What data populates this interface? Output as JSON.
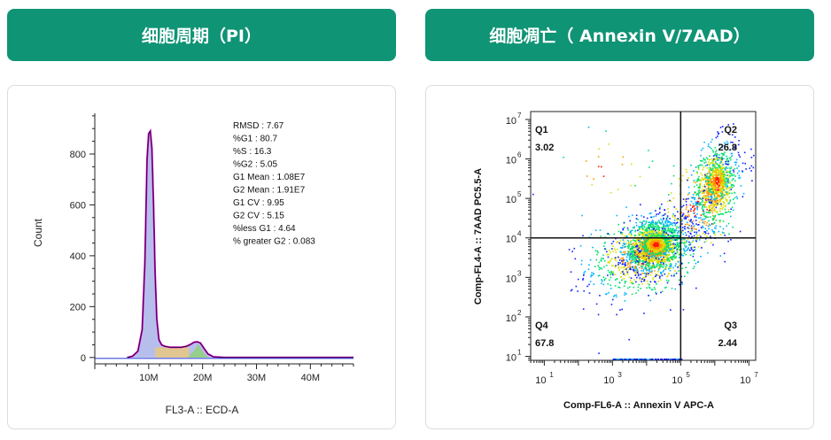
{
  "headers": {
    "left": "细胞周期（PI）",
    "right": "细胞凋亡（ Annexin V/7AAD）"
  },
  "colors": {
    "header_bg": "#0f9475",
    "histogram_fill": "#a9b4e8",
    "fit_line": "#e000e0",
    "s_phase": "#f2c96a",
    "g2_phase": "#8fd07a"
  },
  "chart_data": [
    {
      "type": "histogram",
      "xlabel": "FL3-A :: ECD-A",
      "ylabel": "Count",
      "x_ticks": [
        {
          "v": 10,
          "label": "10M"
        },
        {
          "v": 20,
          "label": "20M"
        },
        {
          "v": 30,
          "label": "30M"
        },
        {
          "v": 40,
          "label": "40M"
        }
      ],
      "y_ticks": [
        0,
        200,
        400,
        600,
        800
      ],
      "xlim": [
        0,
        48
      ],
      "ylim": [
        -25,
        960
      ],
      "x": [
        6,
        7,
        8,
        8.8,
        9.3,
        9.7,
        10,
        10.3,
        10.6,
        10.9,
        11.2,
        11.5,
        11.9,
        12.4,
        13,
        14,
        15,
        16,
        17,
        17.8,
        18.4,
        19,
        19.6,
        20.2,
        21,
        22,
        24,
        30,
        48
      ],
      "values": [
        0,
        5,
        25,
        110,
        380,
        780,
        880,
        890,
        820,
        600,
        330,
        150,
        70,
        50,
        44,
        40,
        40,
        40,
        44,
        52,
        60,
        62,
        57,
        38,
        14,
        3,
        0,
        0,
        0
      ],
      "stats": [
        "RMSD : 7.67",
        "%G1 : 80.7",
        "%S : 16.3",
        "%G2 : 5.05",
        "G1 Mean : 1.08E7",
        "G2 Mean : 1.91E7",
        "G1 CV : 9.95",
        "G2 CV : 5.15",
        "%less G1 : 4.64",
        "% greater G2 : 0.083"
      ]
    },
    {
      "type": "scatter",
      "xlabel": "Comp-FL6-A :: Annexin V APC-A",
      "ylabel": "Comp-FL4-A :: 7AAD PC5.5-A",
      "x_scale": "log",
      "y_scale": "log",
      "x_tick_exponents": [
        1,
        3,
        5,
        7
      ],
      "y_tick_exponents": [
        1,
        2,
        3,
        4,
        5,
        6,
        7
      ],
      "xlim_exp": [
        0.6,
        7.2
      ],
      "ylim_exp": [
        0.9,
        7.2
      ],
      "gate": {
        "x_exp": 5.0,
        "y_exp": 4.0
      },
      "quadrants": [
        {
          "name": "Q1",
          "value": "3.02"
        },
        {
          "name": "Q2",
          "value": "26.8"
        },
        {
          "name": "Q3",
          "value": "2.44"
        },
        {
          "name": "Q4",
          "value": "67.8"
        }
      ]
    }
  ]
}
